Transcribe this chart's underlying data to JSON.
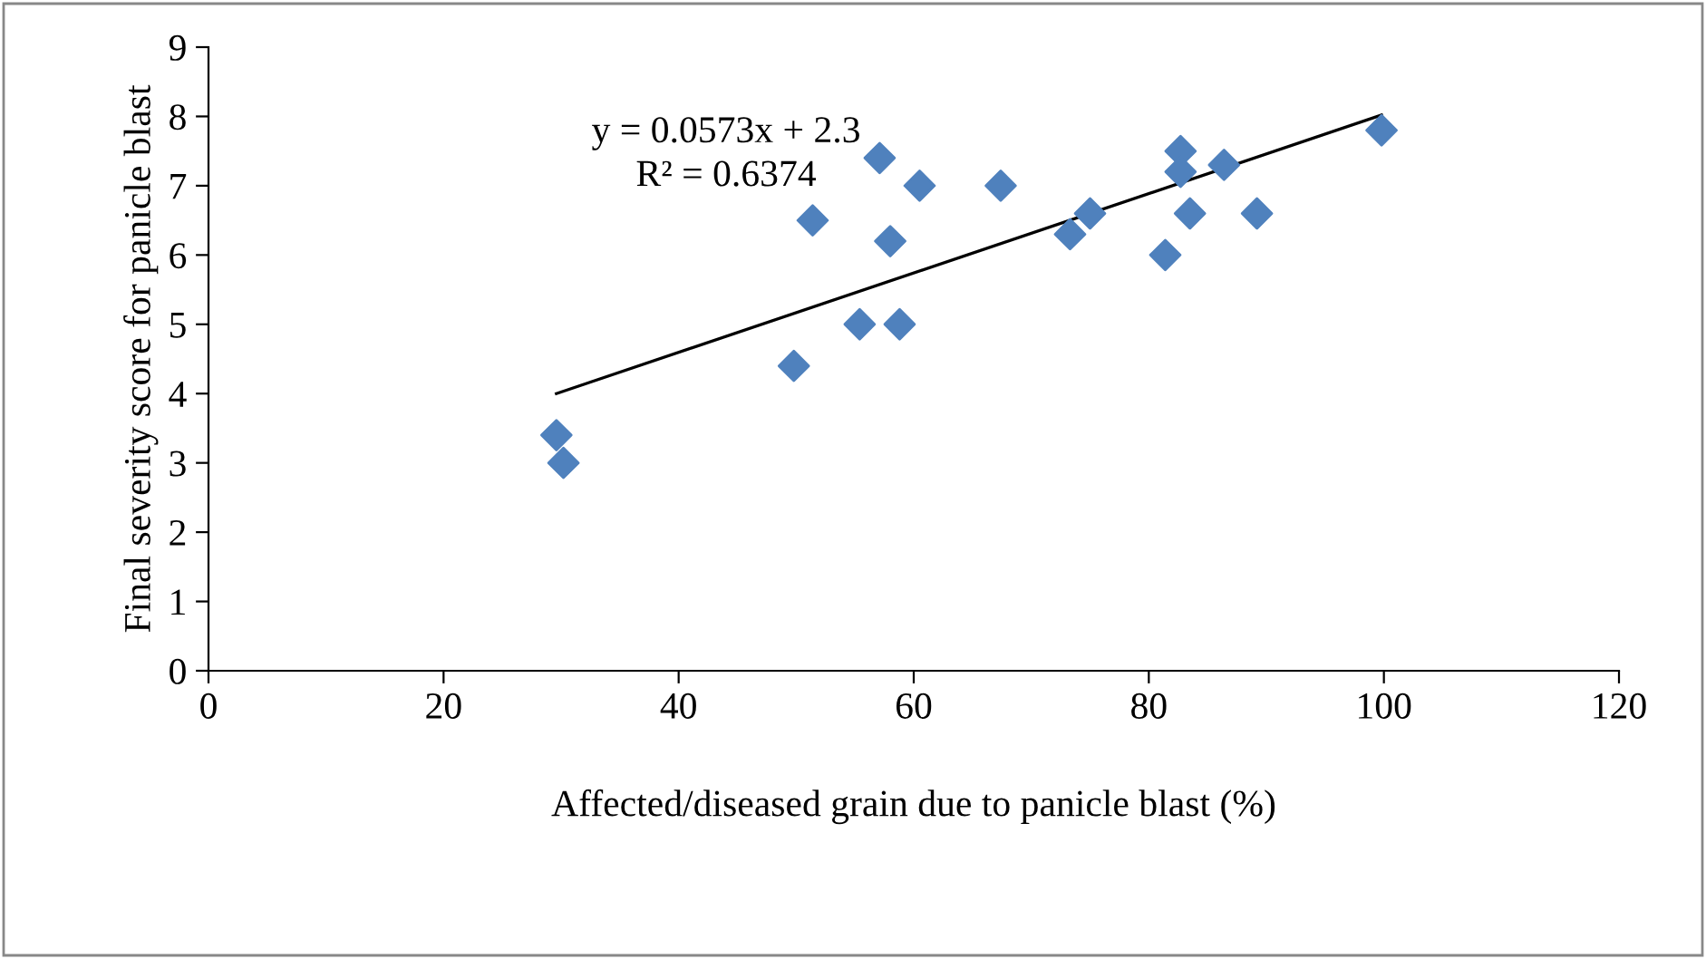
{
  "chart_data": {
    "type": "scatter",
    "xlabel": "Affected/diseased grain due to panicle blast (%)",
    "ylabel": "Final severity score for panicle blast",
    "series": [
      {
        "color": "#4f81bd",
        "marker": "diamond",
        "x": [
          29.6,
          30.2,
          49.8,
          51.4,
          55.4,
          57.1,
          58.0,
          58.8,
          60.5,
          67.4,
          73.3,
          75.0,
          81.4,
          82.7,
          82.7,
          83.5,
          86.4,
          89.2,
          99.8
        ],
        "values": [
          3.4,
          3.0,
          4.4,
          6.5,
          5.0,
          7.4,
          6.2,
          5.0,
          7.0,
          7.0,
          6.3,
          6.6,
          6.0,
          7.5,
          7.2,
          6.6,
          7.3,
          6.6,
          7.8
        ]
      },
      {
        "type": "line",
        "color": "#000000",
        "marker": "none",
        "x": [
          29.6,
          99.8
        ],
        "values": [
          4.0,
          8.02
        ]
      }
    ],
    "annotations": [
      "y = 0.0573x + 2.3",
      "R² = 0.6374"
    ],
    "xlim": [
      0,
      120
    ],
    "xticks": [
      0,
      20,
      40,
      60,
      80,
      100,
      120
    ],
    "ylim": [
      0,
      9
    ],
    "yticks": [
      0,
      1,
      2,
      3,
      4,
      5,
      6,
      7,
      8,
      9
    ],
    "grid": false,
    "legend": false
  }
}
